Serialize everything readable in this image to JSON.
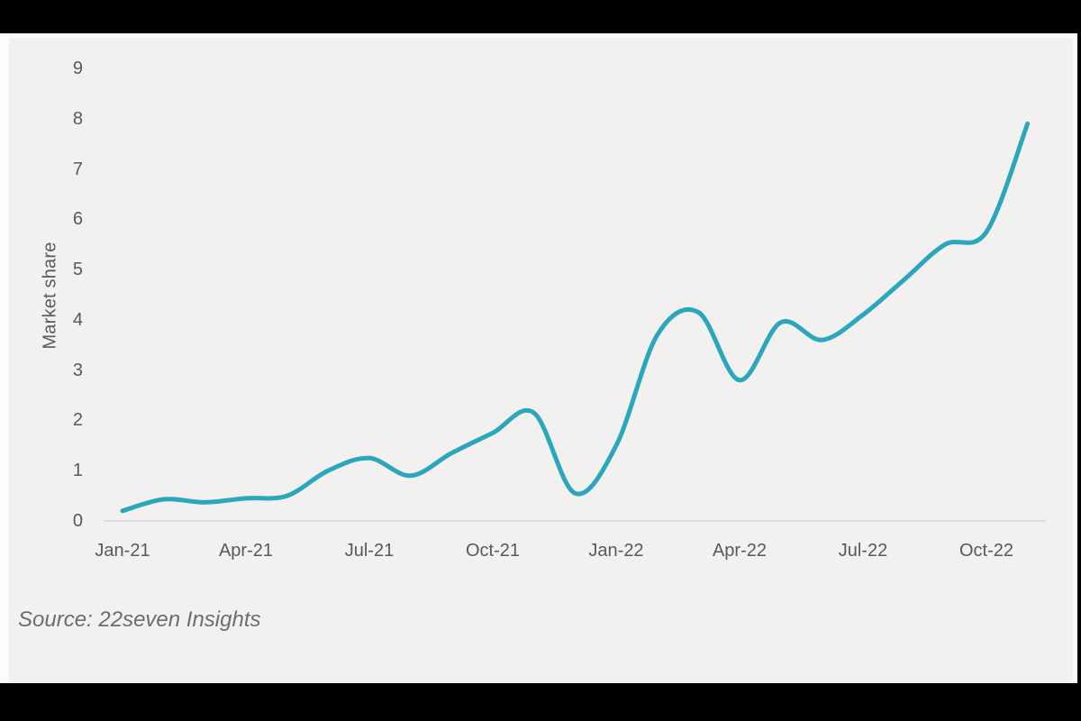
{
  "page": {
    "source_note": "Source: 22seven Insights"
  },
  "colors": {
    "line": "#2aa7bd",
    "axis_line": "#dddbd9",
    "tick_text": "#595959",
    "source_text": "#6d6d6d",
    "panel_bg": "#f2f1ef",
    "band_bg": "#fbfbfa",
    "frame_bg": "#010101"
  },
  "chart_data": {
    "type": "line",
    "title": "",
    "xlabel": "",
    "ylabel": "Market share",
    "x": [
      "Jan-21",
      "Feb-21",
      "Mar-21",
      "Apr-21",
      "May-21",
      "Jun-21",
      "Jul-21",
      "Aug-21",
      "Sep-21",
      "Oct-21",
      "Nov-21",
      "Dec-21",
      "Jan-22",
      "Feb-22",
      "Mar-22",
      "Apr-22",
      "May-22",
      "Jun-22",
      "Jul-22",
      "Aug-22",
      "Sep-22",
      "Oct-22",
      "Nov-22"
    ],
    "series": [
      {
        "name": "Market share",
        "values": [
          0.2,
          0.43,
          0.37,
          0.45,
          0.5,
          1.0,
          1.25,
          0.9,
          1.35,
          1.75,
          2.15,
          0.55,
          1.5,
          3.7,
          4.15,
          2.8,
          3.95,
          3.6,
          4.1,
          4.8,
          5.5,
          5.75,
          7.9
        ]
      }
    ],
    "x_tick_labels": [
      "Jan-21",
      "Apr-21",
      "Jul-21",
      "Oct-21",
      "Jan-22",
      "Apr-22",
      "Jul-22",
      "Oct-22"
    ],
    "x_tick_interval_months": 3,
    "y_ticks": [
      0,
      1,
      2,
      3,
      4,
      5,
      6,
      7,
      8,
      9
    ],
    "ylim": [
      0,
      9
    ],
    "grid": false,
    "legend": "none",
    "smoothed": true
  }
}
